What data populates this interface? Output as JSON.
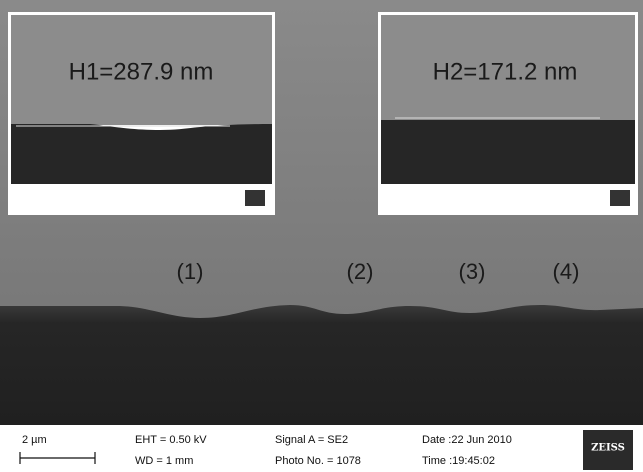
{
  "image": {
    "insets": [
      {
        "label": "H1=287.9 nm"
      },
      {
        "label": "H2=171.2 nm"
      }
    ],
    "region_labels": [
      "(1)",
      "(2)",
      "(3)",
      "(4)"
    ],
    "footer": {
      "scale": "2 µm",
      "eht": "EHT = 0.50 kV",
      "wd": "WD = 1 mm",
      "signal": "Signal A = SE2",
      "photo": "Photo No. = 1078",
      "date": "Date :22 Jun 2010",
      "time": "Time :19:45:02",
      "logo": "ZEISS"
    }
  }
}
